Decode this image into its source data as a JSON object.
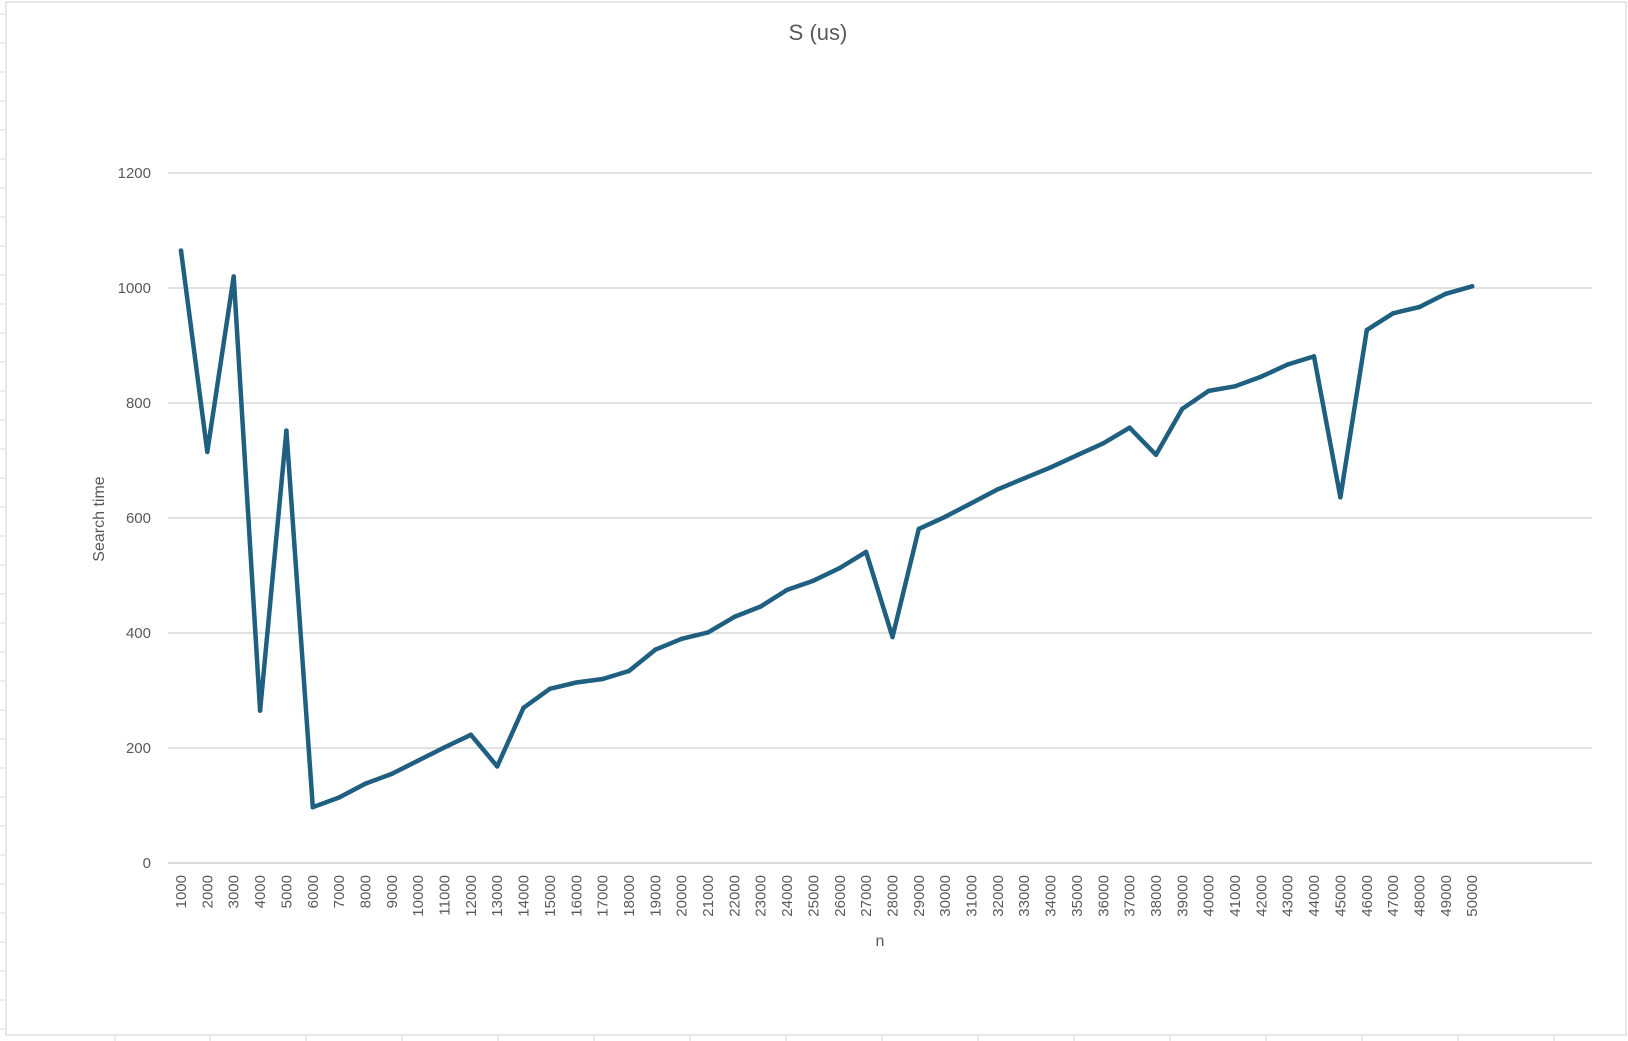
{
  "chart_data": {
    "type": "line",
    "title": "S (us)",
    "xlabel": "n",
    "ylabel": "Search time",
    "ylim": [
      0,
      1200
    ],
    "yticks": [
      0,
      200,
      400,
      600,
      800,
      1000,
      1200
    ],
    "grid": "horizontal",
    "legend": "none",
    "line_color": "#1f5f7f",
    "categories": [
      "1000",
      "2000",
      "3000",
      "4000",
      "5000",
      "6000",
      "7000",
      "8000",
      "9000",
      "10000",
      "11000",
      "12000",
      "13000",
      "14000",
      "15000",
      "16000",
      "17000",
      "18000",
      "19000",
      "20000",
      "21000",
      "22000",
      "23000",
      "24000",
      "25000",
      "26000",
      "27000",
      "28000",
      "29000",
      "30000",
      "31000",
      "32000",
      "33000",
      "34000",
      "35000",
      "36000",
      "37000",
      "38000",
      "39000",
      "40000",
      "41000",
      "42000",
      "43000",
      "44000",
      "45000",
      "46000",
      "47000",
      "48000",
      "49000",
      "50000"
    ],
    "series": [
      {
        "values": [
          1065,
          715,
          1020,
          265,
          752,
          97,
          114,
          138,
          155,
          178,
          201,
          223,
          168,
          270,
          303,
          314,
          320,
          334,
          371,
          390,
          401,
          428,
          446,
          475,
          491,
          513,
          541,
          393,
          581,
          602,
          626,
          650,
          669,
          688,
          709,
          730,
          757,
          710,
          790,
          821,
          829,
          846,
          867,
          881,
          636,
          927,
          956,
          967,
          990,
          1003
        ]
      }
    ]
  }
}
